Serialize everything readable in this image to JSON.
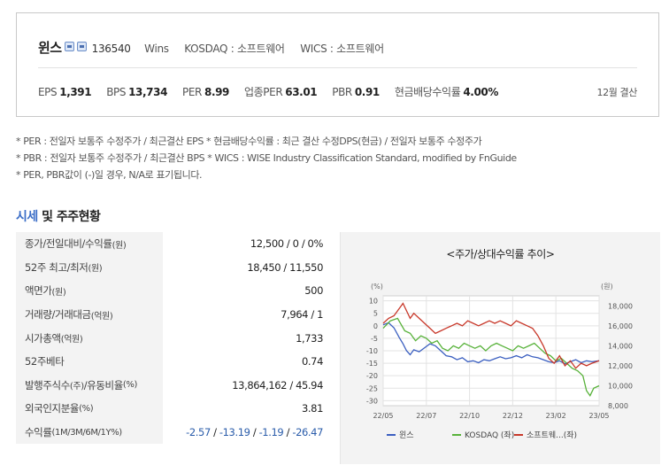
{
  "company": {
    "name": "윈스",
    "code": "136540",
    "eng_name": "Wins",
    "market": "KOSDAQ : 소프트웨어",
    "wics": "WICS : 소프트웨어",
    "icons": [
      "report-icon",
      "building-icon"
    ]
  },
  "indicators": [
    {
      "label": "EPS",
      "value": "1,391"
    },
    {
      "label": "BPS",
      "value": "13,734"
    },
    {
      "label": "PER",
      "value": "8.99"
    },
    {
      "label": "업종PER",
      "value": "63.01"
    },
    {
      "label": "PBR",
      "value": "0.91"
    },
    {
      "label": "현금배당수익률",
      "value": "4.00%"
    }
  ],
  "settlement": "12월 결산",
  "notes": [
    "* PER : 전일자 보통주 수정주가 / 최근결산 EPS * 현금배당수익률 : 최근 결산 수정DPS(현금) / 전일자 보통주 수정주가",
    "* PBR : 전일자 보통주 수정주가 / 최근결산 BPS * WICS : WISE Industry Classification Standard, modified by FnGuide",
    "* PER, PBR값이 (-)일 경우, N/A로 표기됩니다."
  ],
  "section": {
    "accent": "시세",
    "rest": " 및 주주현황"
  },
  "table": [
    {
      "label": "종가/전일대비/수익률",
      "unit": "(원)",
      "value": "12,500 / 0 / 0%"
    },
    {
      "label": "52주 최고/최저",
      "unit": "(원)",
      "value": "18,450 / 11,550"
    },
    {
      "label": "액면가",
      "unit": "(원)",
      "value": "500"
    },
    {
      "label": "거래량/거래대금",
      "unit": "(억원)",
      "value": "7,964 / 1"
    },
    {
      "label": "시가총액",
      "unit": "(억원)",
      "value": "1,733"
    },
    {
      "label": "52주베타",
      "unit": "",
      "value": "0.74"
    },
    {
      "label": "발행주식수",
      "unit": "(주)",
      "label2": "/유동비율",
      "unit2": "(%)",
      "value": "13,864,162 / 45.94"
    },
    {
      "label": "외국인지분율",
      "unit": "(%)",
      "value": "3.81"
    },
    {
      "label": "수익률",
      "unit": "(1M/3M/6M/1Y%)",
      "returns": [
        "-2.57",
        "-13.19",
        "-1.19",
        "-26.47"
      ]
    }
  ],
  "chart_data": {
    "type": "line",
    "title": "<주가/상대수익률 추이>",
    "left_unit": "(%)",
    "right_unit": "(원)",
    "x_ticks": [
      "22/05",
      "22/07",
      "22/10",
      "22/12",
      "23/02",
      "23/05"
    ],
    "left_ticks": [
      "10",
      "5",
      "0",
      "-5",
      "-10",
      "-15",
      "-20",
      "-25",
      "-30"
    ],
    "right_ticks": [
      "18,000",
      "16,000",
      "14,000",
      "12,000",
      "10,000",
      "8,000"
    ],
    "ylim_left": [
      -32,
      12
    ],
    "ylim_right": [
      8000,
      19000
    ],
    "x_range": [
      0,
      12
    ],
    "grid": true,
    "legend_position": "bottom",
    "series": [
      {
        "name": "윈스",
        "color": "#3b5fc0",
        "axis": "right",
        "points": [
          [
            0,
            16100
          ],
          [
            0.3,
            16300
          ],
          [
            0.6,
            15800
          ],
          [
            0.9,
            14800
          ],
          [
            1.1,
            14200
          ],
          [
            1.3,
            13500
          ],
          [
            1.5,
            13100
          ],
          [
            1.7,
            13600
          ],
          [
            2,
            13400
          ],
          [
            2.3,
            13800
          ],
          [
            2.6,
            14200
          ],
          [
            2.9,
            14000
          ],
          [
            3.2,
            13500
          ],
          [
            3.5,
            13000
          ],
          [
            3.8,
            12900
          ],
          [
            4.1,
            12600
          ],
          [
            4.4,
            12800
          ],
          [
            4.7,
            12400
          ],
          [
            5,
            12500
          ],
          [
            5.3,
            12300
          ],
          [
            5.6,
            12600
          ],
          [
            5.9,
            12500
          ],
          [
            6.2,
            12700
          ],
          [
            6.5,
            12900
          ],
          [
            6.8,
            12700
          ],
          [
            7.1,
            12800
          ],
          [
            7.4,
            13000
          ],
          [
            7.7,
            12800
          ],
          [
            8,
            13100
          ],
          [
            8.3,
            12900
          ],
          [
            8.6,
            12800
          ],
          [
            8.9,
            12600
          ],
          [
            9.2,
            12400
          ],
          [
            9.5,
            12300
          ],
          [
            9.8,
            12500
          ],
          [
            10.1,
            12200
          ],
          [
            10.4,
            12400
          ],
          [
            10.7,
            12600
          ],
          [
            11,
            12300
          ],
          [
            11.3,
            12500
          ],
          [
            11.6,
            12400
          ],
          [
            12,
            12500
          ]
        ]
      },
      {
        "name": "KOSDAQ (좌)",
        "color": "#58b23a",
        "axis": "left",
        "points": [
          [
            0,
            -1
          ],
          [
            0.4,
            2
          ],
          [
            0.8,
            3
          ],
          [
            1.2,
            -2
          ],
          [
            1.5,
            -3
          ],
          [
            1.8,
            -6
          ],
          [
            2.1,
            -4
          ],
          [
            2.4,
            -5
          ],
          [
            2.7,
            -7
          ],
          [
            3,
            -6
          ],
          [
            3.3,
            -9
          ],
          [
            3.6,
            -10
          ],
          [
            3.9,
            -8
          ],
          [
            4.2,
            -9
          ],
          [
            4.5,
            -7
          ],
          [
            4.8,
            -8
          ],
          [
            5.1,
            -9
          ],
          [
            5.4,
            -8
          ],
          [
            5.7,
            -10
          ],
          [
            6,
            -8
          ],
          [
            6.3,
            -7
          ],
          [
            6.6,
            -8
          ],
          [
            6.9,
            -9
          ],
          [
            7.2,
            -10
          ],
          [
            7.5,
            -8
          ],
          [
            7.8,
            -9
          ],
          [
            8.1,
            -8
          ],
          [
            8.4,
            -7
          ],
          [
            8.7,
            -9
          ],
          [
            9,
            -11
          ],
          [
            9.3,
            -12
          ],
          [
            9.6,
            -14
          ],
          [
            9.9,
            -13
          ],
          [
            10.2,
            -15
          ],
          [
            10.5,
            -17
          ],
          [
            10.8,
            -18
          ],
          [
            11.1,
            -20
          ],
          [
            11.3,
            -26
          ],
          [
            11.5,
            -28
          ],
          [
            11.7,
            -25
          ],
          [
            12,
            -24
          ]
        ]
      },
      {
        "name": "소프트웨...(좌)",
        "color": "#c8382a",
        "axis": "left",
        "points": [
          [
            0,
            1
          ],
          [
            0.3,
            3
          ],
          [
            0.6,
            4
          ],
          [
            0.9,
            7
          ],
          [
            1.1,
            9
          ],
          [
            1.3,
            6
          ],
          [
            1.5,
            3
          ],
          [
            1.7,
            5
          ],
          [
            2,
            3
          ],
          [
            2.3,
            1
          ],
          [
            2.6,
            -1
          ],
          [
            2.9,
            -3
          ],
          [
            3.2,
            -2
          ],
          [
            3.5,
            -1
          ],
          [
            3.8,
            0
          ],
          [
            4.1,
            1
          ],
          [
            4.4,
            0
          ],
          [
            4.7,
            2
          ],
          [
            5,
            1
          ],
          [
            5.3,
            0
          ],
          [
            5.6,
            1
          ],
          [
            5.9,
            2
          ],
          [
            6.2,
            1
          ],
          [
            6.5,
            2
          ],
          [
            6.8,
            1
          ],
          [
            7.1,
            0
          ],
          [
            7.4,
            2
          ],
          [
            7.7,
            1
          ],
          [
            8,
            0
          ],
          [
            8.3,
            -1
          ],
          [
            8.6,
            -4
          ],
          [
            8.9,
            -8
          ],
          [
            9.2,
            -13
          ],
          [
            9.5,
            -15
          ],
          [
            9.8,
            -12
          ],
          [
            10.1,
            -16
          ],
          [
            10.4,
            -14
          ],
          [
            10.7,
            -17
          ],
          [
            11,
            -15
          ],
          [
            11.3,
            -16
          ],
          [
            11.6,
            -15
          ],
          [
            12,
            -14
          ]
        ]
      }
    ]
  }
}
